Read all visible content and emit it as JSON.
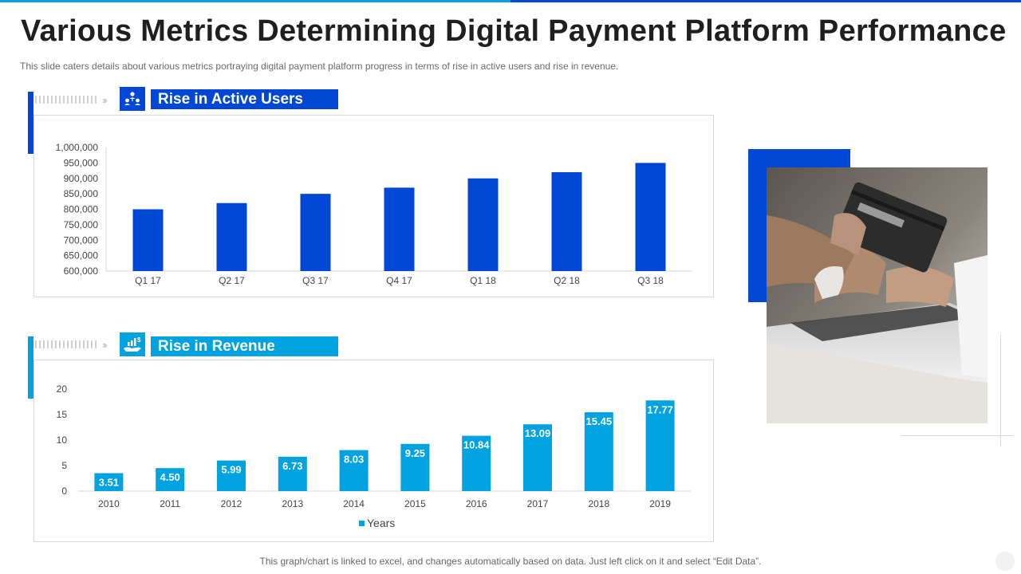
{
  "slide": {
    "title": "Various Metrics Determining Digital Payment Platform Performance",
    "subtitle": "This slide caters details about various  metrics portraying digital payment platform  progress in terms of rise in active users and rise in revenue.",
    "footnote": "This graph/chart is linked to excel, and changes automatically based on data. Just left click on it and select “Edit Data”."
  },
  "sections": {
    "users": {
      "label": "Rise in Active Users",
      "icon": "users-network-icon"
    },
    "revenue": {
      "label": "Rise in Revenue",
      "icon": "hand-money-growth-icon"
    }
  },
  "image": {
    "icon": "credit-card-laptop-photo"
  },
  "colors": {
    "primary_blue": "#0047d6",
    "accent_cyan": "#00a3e0"
  },
  "chart_data": [
    {
      "type": "bar",
      "title": "",
      "categories": [
        "Q1 17",
        "Q2 17",
        "Q3 17",
        "Q4 17",
        "Q1 18",
        "Q2 18",
        "Q3 18"
      ],
      "values": [
        800000,
        820000,
        850000,
        870000,
        900000,
        920000,
        950000
      ],
      "ylim": [
        600000,
        1000000
      ],
      "yticks": [
        "600,000",
        "650,000",
        "700,000",
        "750,000",
        "800,000",
        "850,000",
        "900,000",
        "950,000",
        "1,000,000"
      ],
      "color": "#0047d6",
      "grid": false,
      "legend": "none"
    },
    {
      "type": "bar",
      "title": "",
      "categories": [
        "2010",
        "2011",
        "2012",
        "2013",
        "2014",
        "2015",
        "2016",
        "2017",
        "2018",
        "2019"
      ],
      "series": [
        {
          "name": "Years",
          "values": [
            3.51,
            4.5,
            5.99,
            6.73,
            8.03,
            9.25,
            10.84,
            13.09,
            15.45,
            17.77
          ]
        }
      ],
      "data_labels": [
        "3.51",
        "4.50",
        "5.99",
        "6.73",
        "8.03",
        "9.25",
        "10.84",
        "13.09",
        "15.45",
        "17.77"
      ],
      "ylim": [
        0,
        20
      ],
      "yticks": [
        "0",
        "5",
        "10",
        "15",
        "20"
      ],
      "color": "#00a3e0",
      "grid": false,
      "legend": "bottom"
    }
  ]
}
